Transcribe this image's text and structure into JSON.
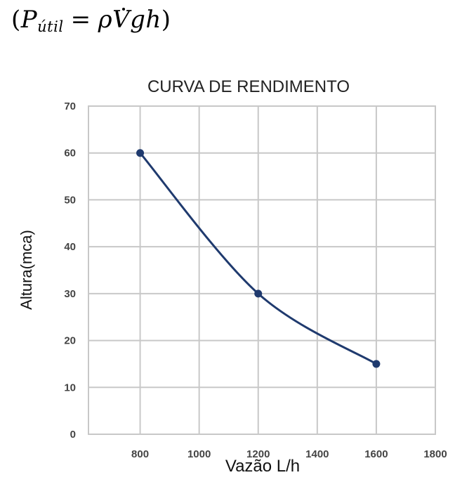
{
  "formula": {
    "open_paren": "(",
    "symbol": "P",
    "subscript": "útil",
    "equals": "=",
    "rho": "ρ",
    "vdot": "V",
    "rest": "gh",
    "close_paren": ")"
  },
  "chart_data": {
    "type": "line",
    "title": "CURVA DE RENDIMENTO",
    "xlabel": "Vazão L/h",
    "ylabel": "Altura(mca)",
    "x": [
      800,
      1200,
      1600
    ],
    "series": [
      {
        "name": "Curva de rendimento",
        "values": [
          60,
          30,
          15
        ],
        "color": "#1f3a6e",
        "smooth": true,
        "markers": true
      }
    ],
    "xlim": [
      625,
      1800
    ],
    "ylim": [
      0,
      70
    ],
    "xticks": [
      800,
      1000,
      1200,
      1400,
      1600,
      1800
    ],
    "yticks": [
      0,
      10,
      20,
      30,
      40,
      50,
      60,
      70
    ],
    "grid": true,
    "legend": "none"
  },
  "colors": {
    "line": "#1f3a6e",
    "grid": "#c8c8c8",
    "tick_text": "#444444"
  }
}
